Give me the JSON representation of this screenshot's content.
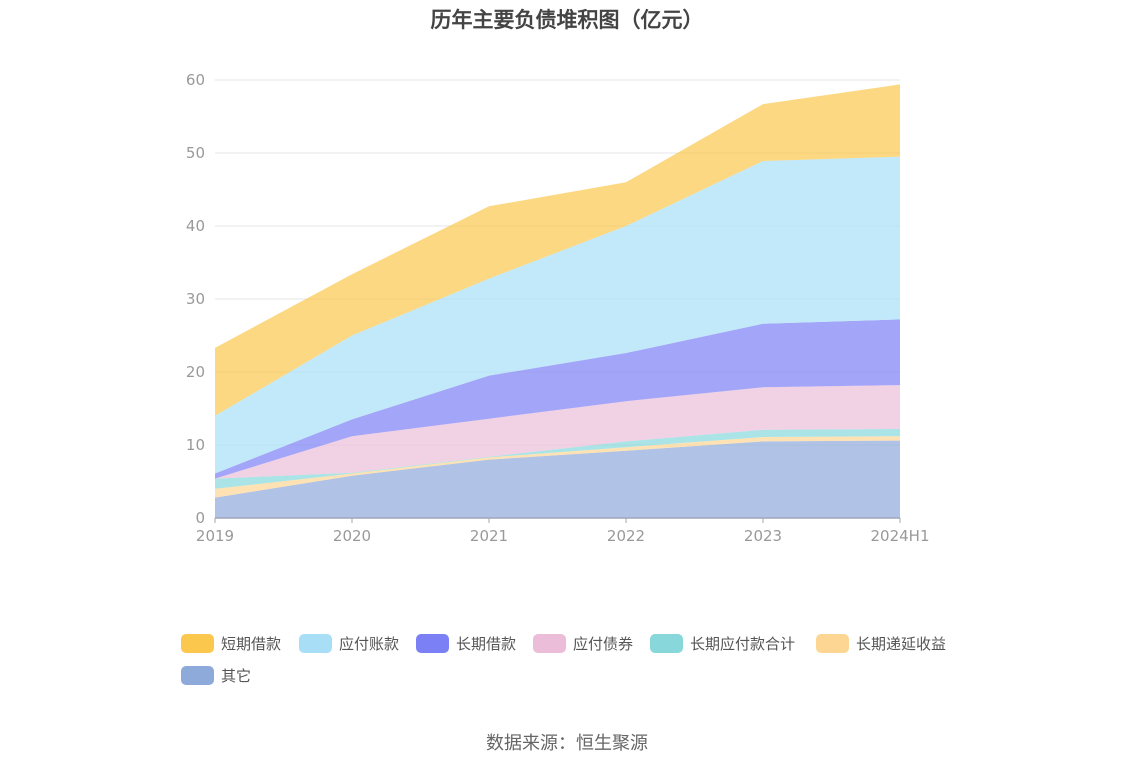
{
  "chart_data": {
    "type": "area",
    "stacked": true,
    "title": "历年主要负债堆积图（亿元）",
    "x": [
      "2019",
      "2020",
      "2021",
      "2022",
      "2023",
      "2024H1"
    ],
    "ylim": [
      0,
      60
    ],
    "yticks": [
      0,
      10,
      20,
      30,
      40,
      50,
      60
    ],
    "grid": true,
    "legend_position": "bottom",
    "series": [
      {
        "name": "其它",
        "color": "#8eaadb",
        "values": [
          2.8,
          5.8,
          8.0,
          9.2,
          10.5,
          10.6
        ]
      },
      {
        "name": "长期递延收益",
        "color": "#fdd694",
        "values": [
          1.2,
          0.3,
          0.3,
          0.5,
          0.6,
          0.6
        ]
      },
      {
        "name": "长期应付款合计",
        "color": "#88d8db",
        "values": [
          1.4,
          0.1,
          0.1,
          0.8,
          1.0,
          1.0
        ]
      },
      {
        "name": "应付债券",
        "color": "#ebbdd9",
        "values": [
          0.0,
          5.0,
          5.2,
          5.5,
          5.8,
          6.0
        ]
      },
      {
        "name": "长期借款",
        "color": "#7c80f5",
        "values": [
          0.7,
          2.3,
          5.9,
          6.6,
          8.7,
          9.0
        ]
      },
      {
        "name": "应付账款",
        "color": "#a8dff7",
        "values": [
          7.9,
          11.5,
          13.3,
          17.4,
          22.3,
          22.3
        ]
      },
      {
        "name": "短期借款",
        "color": "#fbc84d",
        "values": [
          9.3,
          8.4,
          9.9,
          6.0,
          7.8,
          9.9
        ]
      }
    ]
  },
  "legend_order": [
    "短期借款",
    "应付账款",
    "长期借款",
    "应付债券",
    "长期应付款合计",
    "长期递延收益",
    "其它"
  ],
  "source": "数据来源：恒生聚源"
}
